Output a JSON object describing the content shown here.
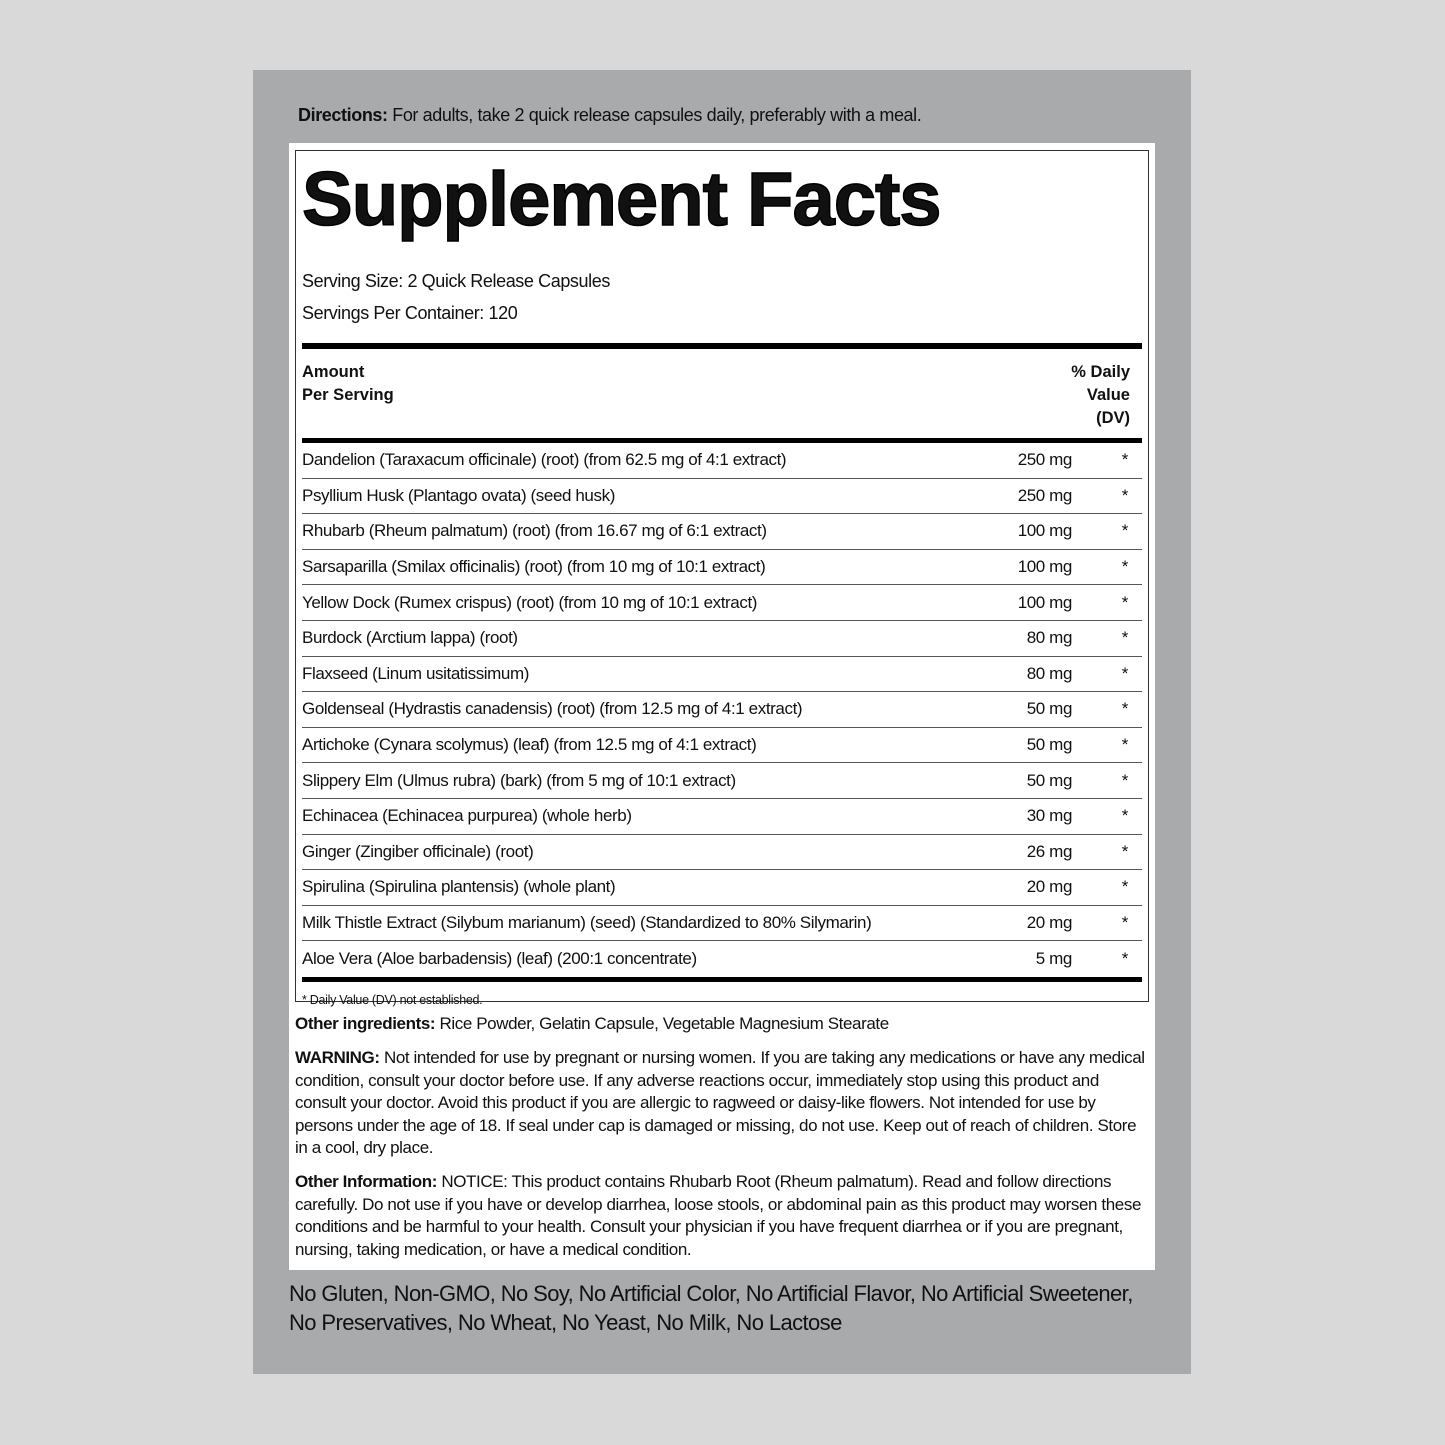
{
  "directions": {
    "label": "Directions:",
    "text": " For adults, take 2 quick release capsules daily, preferably with a meal."
  },
  "facts": {
    "title": "Supplement Facts",
    "serving_size": "Serving Size: 2 Quick Release Capsules",
    "servings_per_container": "Servings Per Container: 120",
    "header_amount_1": "Amount",
    "header_amount_2": "Per Serving",
    "header_dv_1": "% Daily",
    "header_dv_2": "Value",
    "header_dv_3": "(DV)",
    "rows": [
      {
        "name": "Dandelion (Taraxacum officinale) (root) (from 62.5 mg of 4:1 extract)",
        "amount": "250 mg",
        "dv": "*"
      },
      {
        "name": "Psyllium Husk (Plantago ovata) (seed husk)",
        "amount": "250 mg",
        "dv": "*"
      },
      {
        "name": "Rhubarb (Rheum palmatum) (root) (from 16.67 mg of 6:1 extract)",
        "amount": "100 mg",
        "dv": "*"
      },
      {
        "name": "Sarsaparilla (Smilax officinalis) (root) (from 10 mg of 10:1 extract)",
        "amount": "100 mg",
        "dv": "*"
      },
      {
        "name": "Yellow Dock (Rumex crispus) (root) (from 10 mg of 10:1 extract)",
        "amount": "100 mg",
        "dv": "*"
      },
      {
        "name": "Burdock (Arctium lappa) (root)",
        "amount": "80 mg",
        "dv": "*"
      },
      {
        "name": "Flaxseed (Linum usitatissimum)",
        "amount": "80 mg",
        "dv": "*"
      },
      {
        "name": "Goldenseal (Hydrastis canadensis) (root) (from 12.5 mg of 4:1 extract)",
        "amount": "50 mg",
        "dv": "*"
      },
      {
        "name": "Artichoke (Cynara scolymus) (leaf) (from 12.5 mg of 4:1 extract)",
        "amount": "50 mg",
        "dv": "*"
      },
      {
        "name": "Slippery Elm (Ulmus rubra) (bark) (from 5 mg of 10:1 extract)",
        "amount": "50 mg",
        "dv": "*"
      },
      {
        "name": "Echinacea (Echinacea purpurea) (whole herb)",
        "amount": "30 mg",
        "dv": "*"
      },
      {
        "name": "Ginger (Zingiber officinale) (root)",
        "amount": "26 mg",
        "dv": "*"
      },
      {
        "name": "Spirulina (Spirulina plantensis) (whole plant)",
        "amount": "20 mg",
        "dv": "*"
      },
      {
        "name": "Milk Thistle Extract (Silybum marianum) (seed) (Standardized to 80% Silymarin)",
        "amount": "20 mg",
        "dv": "*"
      },
      {
        "name": "Aloe Vera (Aloe barbadensis) (leaf) (200:1 concentrate)",
        "amount": "5 mg",
        "dv": "*"
      }
    ],
    "footnote": "* Daily Value (DV) not established."
  },
  "other_ingredients": {
    "label": "Other ingredients:",
    "text": " Rice Powder, Gelatin Capsule, Vegetable Magnesium Stearate"
  },
  "warning": {
    "label": "WARNING:",
    "text": " Not intended for use by pregnant or nursing women. If you are taking any medications or have any medical condition, consult your doctor before use. If any adverse reactions occur, immediately stop using this product and consult your doctor. Avoid this product if you are allergic to ragweed or daisy-like flowers. Not intended for use by persons under the age of 18. If seal under cap is damaged or missing, do not use. Keep out of reach of children. Store in a cool, dry place."
  },
  "other_information": {
    "label": "Other Information:",
    "text": " NOTICE: This product contains Rhubarb Root (Rheum palmatum). Read and follow directions carefully. Do not use if you have or develop diarrhea, loose stools, or abdominal pain as this product may worsen these conditions and be harmful to your health. Consult your physician if you have frequent diarrhea or if you are pregnant, nursing, taking medication, or have a medical condition."
  },
  "claims": "No Gluten, Non-GMO, No Soy, No Artificial Color, No Artificial Flavor, No Artificial Sweetener, No Preservatives, No Wheat, No Yeast, No Milk, No Lactose"
}
